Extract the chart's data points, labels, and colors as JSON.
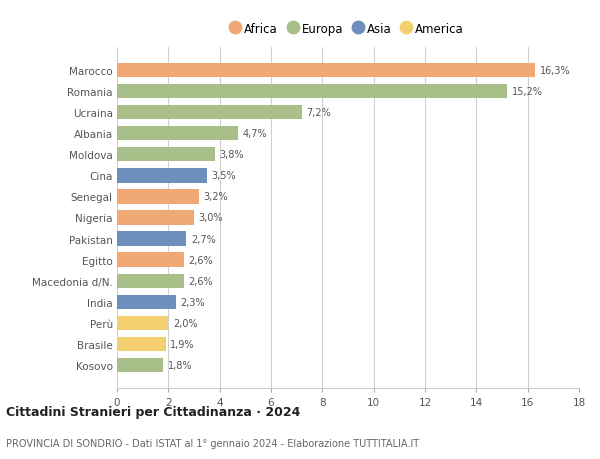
{
  "categories": [
    "Marocco",
    "Romania",
    "Ucraina",
    "Albania",
    "Moldova",
    "Cina",
    "Senegal",
    "Nigeria",
    "Pakistan",
    "Egitto",
    "Macedonia d/N.",
    "India",
    "Perù",
    "Brasile",
    "Kosovo"
  ],
  "values": [
    16.3,
    15.2,
    7.2,
    4.7,
    3.8,
    3.5,
    3.2,
    3.0,
    2.7,
    2.6,
    2.6,
    2.3,
    2.0,
    1.9,
    1.8
  ],
  "labels": [
    "16,3%",
    "15,2%",
    "7,2%",
    "4,7%",
    "3,8%",
    "3,5%",
    "3,2%",
    "3,0%",
    "2,7%",
    "2,6%",
    "2,6%",
    "2,3%",
    "2,0%",
    "1,9%",
    "1,8%"
  ],
  "colors": [
    "#f0a875",
    "#a8bf8a",
    "#a8bf8a",
    "#a8bf8a",
    "#a8bf8a",
    "#6e8fbb",
    "#f0a875",
    "#f0a875",
    "#6e8fbb",
    "#f0a875",
    "#a8bf8a",
    "#6e8fbb",
    "#f5d06e",
    "#f5d06e",
    "#a8bf8a"
  ],
  "legend_labels": [
    "Africa",
    "Europa",
    "Asia",
    "America"
  ],
  "legend_colors": [
    "#f0a875",
    "#a8bf8a",
    "#6e8fbb",
    "#f5d06e"
  ],
  "title": "Cittadini Stranieri per Cittadinanza · 2024",
  "subtitle": "PROVINCIA DI SONDRIO - Dati ISTAT al 1° gennaio 2024 - Elaborazione TUTTITALIA.IT",
  "xlim": [
    0,
    18
  ],
  "xticks": [
    0,
    2,
    4,
    6,
    8,
    10,
    12,
    14,
    16,
    18
  ],
  "bg_color": "#ffffff",
  "grid_color": "#d0d0d0",
  "bar_height": 0.68
}
